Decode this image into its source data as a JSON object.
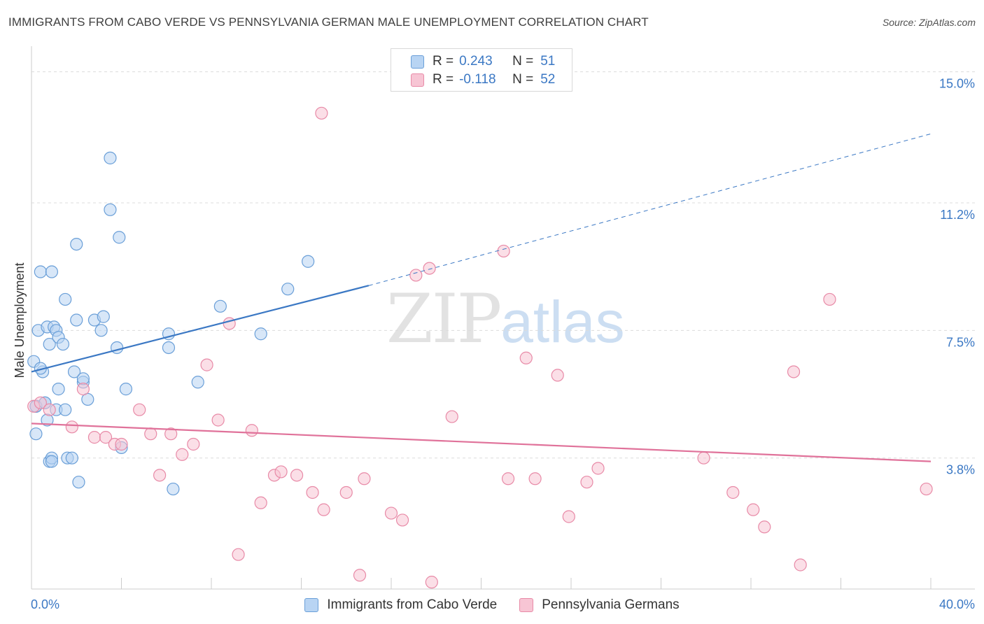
{
  "title": "IMMIGRANTS FROM CABO VERDE VS PENNSYLVANIA GERMAN MALE UNEMPLOYMENT CORRELATION CHART",
  "source": "Source: ZipAtlas.com",
  "watermark": {
    "zip": "ZIP",
    "atlas": "atlas"
  },
  "colors": {
    "blue_fill": "#b8d4f3",
    "blue_stroke": "#6a9fd8",
    "blue_line": "#3b78c4",
    "pink_fill": "#f7c5d4",
    "pink_stroke": "#e88aa7",
    "pink_line": "#e0729a",
    "axis_text": "#3b78c4",
    "grid": "#dcdcdc"
  },
  "legend_top": [
    {
      "r_label": "R =",
      "r_value": "0.243",
      "n_label": "N =",
      "n_value": "51"
    },
    {
      "r_label": "R =",
      "r_value": "-0.118",
      "n_label": "N =",
      "n_value": "52"
    }
  ],
  "legend_bottom": [
    "Immigrants from Cabo Verde",
    "Pennsylvania Germans"
  ],
  "chart_data": {
    "type": "scatter",
    "xlabel": "",
    "ylabel": "Male Unemployment",
    "xlim": [
      0,
      40
    ],
    "ylim": [
      0,
      15.5
    ],
    "x_tick_labels": [
      "0.0%",
      "40.0%"
    ],
    "y_ticks": [
      3.8,
      7.5,
      11.2,
      15.0
    ],
    "y_tick_labels": [
      "3.8%",
      "7.5%",
      "11.2%",
      "15.0%"
    ],
    "grid": true,
    "series": [
      {
        "name": "Immigrants from Cabo Verde",
        "color": "blue",
        "r": 0.243,
        "n": 51,
        "trend": {
          "x": [
            0,
            15
          ],
          "y": [
            6.3,
            8.8
          ],
          "dashed_x": [
            15,
            40
          ],
          "dashed_y": [
            8.8,
            13.2
          ]
        },
        "points": [
          [
            0.1,
            6.6
          ],
          [
            0.2,
            5.3
          ],
          [
            0.2,
            4.5
          ],
          [
            0.3,
            7.5
          ],
          [
            0.4,
            9.2
          ],
          [
            0.5,
            6.3
          ],
          [
            0.6,
            5.4
          ],
          [
            0.7,
            4.9
          ],
          [
            0.7,
            7.6
          ],
          [
            0.8,
            7.1
          ],
          [
            0.8,
            3.7
          ],
          [
            0.9,
            9.2
          ],
          [
            0.9,
            3.8
          ],
          [
            1.0,
            7.6
          ],
          [
            1.1,
            7.5
          ],
          [
            1.1,
            5.2
          ],
          [
            1.2,
            7.3
          ],
          [
            1.2,
            5.8
          ],
          [
            1.4,
            7.1
          ],
          [
            1.5,
            5.2
          ],
          [
            1.5,
            8.4
          ],
          [
            1.6,
            3.8
          ],
          [
            1.8,
            3.8
          ],
          [
            1.9,
            6.3
          ],
          [
            2.0,
            10.0
          ],
          [
            2.0,
            7.8
          ],
          [
            2.1,
            3.1
          ],
          [
            2.3,
            6.0
          ],
          [
            2.3,
            6.1
          ],
          [
            2.5,
            5.5
          ],
          [
            2.8,
            7.8
          ],
          [
            3.1,
            7.5
          ],
          [
            3.2,
            7.9
          ],
          [
            3.5,
            12.5
          ],
          [
            3.5,
            11.0
          ],
          [
            3.8,
            7.0
          ],
          [
            3.9,
            10.2
          ],
          [
            4.0,
            4.1
          ],
          [
            4.2,
            5.8
          ],
          [
            6.1,
            7.4
          ],
          [
            6.1,
            7.0
          ],
          [
            6.3,
            2.9
          ],
          [
            7.4,
            6.0
          ],
          [
            8.4,
            8.2
          ],
          [
            10.2,
            7.4
          ],
          [
            11.4,
            8.7
          ],
          [
            12.3,
            9.5
          ],
          [
            0.2,
            5.3
          ],
          [
            0.4,
            6.4
          ],
          [
            0.6,
            5.4
          ],
          [
            0.9,
            3.7
          ]
        ]
      },
      {
        "name": "Pennsylvania Germans",
        "color": "pink",
        "r": -0.118,
        "n": 52,
        "trend": {
          "x": [
            0,
            40
          ],
          "y": [
            4.8,
            3.7
          ]
        },
        "points": [
          [
            0.1,
            5.3
          ],
          [
            0.4,
            5.4
          ],
          [
            0.8,
            5.2
          ],
          [
            1.8,
            4.7
          ],
          [
            2.3,
            5.8
          ],
          [
            2.8,
            4.4
          ],
          [
            3.3,
            4.4
          ],
          [
            3.7,
            4.2
          ],
          [
            4.0,
            4.2
          ],
          [
            4.8,
            5.2
          ],
          [
            5.3,
            4.5
          ],
          [
            5.7,
            3.3
          ],
          [
            6.2,
            4.5
          ],
          [
            6.7,
            3.9
          ],
          [
            7.2,
            4.2
          ],
          [
            7.8,
            6.5
          ],
          [
            8.3,
            4.9
          ],
          [
            8.8,
            7.7
          ],
          [
            9.2,
            1.0
          ],
          [
            9.8,
            4.6
          ],
          [
            10.2,
            2.5
          ],
          [
            10.8,
            3.3
          ],
          [
            11.1,
            3.4
          ],
          [
            11.8,
            3.3
          ],
          [
            12.5,
            2.8
          ],
          [
            13.0,
            2.3
          ],
          [
            12.9,
            13.8
          ],
          [
            14.0,
            2.8
          ],
          [
            14.6,
            0.4
          ],
          [
            14.8,
            3.2
          ],
          [
            16.0,
            2.2
          ],
          [
            16.5,
            2.0
          ],
          [
            17.1,
            9.1
          ],
          [
            17.7,
            9.3
          ],
          [
            17.8,
            0.2
          ],
          [
            18.7,
            5.0
          ],
          [
            21.0,
            9.8
          ],
          [
            21.2,
            3.2
          ],
          [
            22.0,
            6.7
          ],
          [
            22.4,
            3.2
          ],
          [
            23.4,
            6.2
          ],
          [
            23.9,
            2.1
          ],
          [
            24.7,
            3.1
          ],
          [
            25.2,
            3.5
          ],
          [
            29.9,
            3.8
          ],
          [
            31.2,
            2.8
          ],
          [
            32.1,
            2.3
          ],
          [
            32.6,
            1.8
          ],
          [
            33.9,
            6.3
          ],
          [
            34.2,
            0.7
          ],
          [
            35.5,
            8.4
          ],
          [
            39.8,
            2.9
          ]
        ]
      }
    ]
  }
}
